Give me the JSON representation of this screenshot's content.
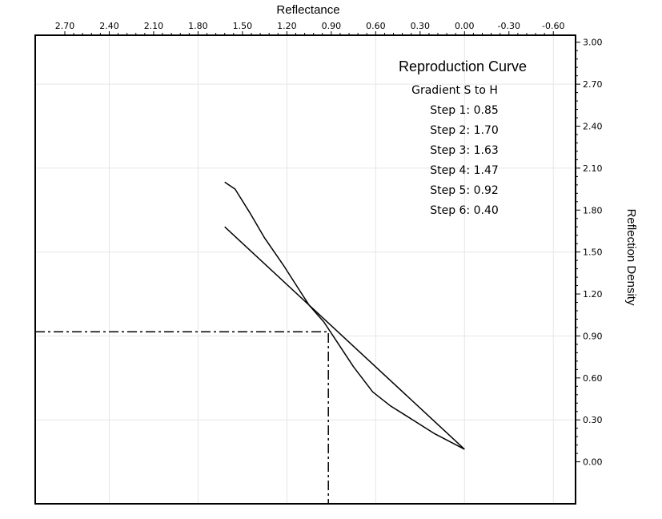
{
  "chart_data": {
    "type": "line",
    "x_axis": {
      "label": "Reflectance",
      "position": "top",
      "reversed": true,
      "range": [
        2.9,
        -0.75
      ],
      "ticks": [
        "2.70",
        "2.40",
        "2.10",
        "1.80",
        "1.50",
        "1.20",
        "0.90",
        "0.60",
        "0.30",
        "0.00",
        "-0.30",
        "-0.60"
      ]
    },
    "y_axis": {
      "label": "Reflection Density",
      "position": "right",
      "range": [
        -0.3,
        3.05
      ],
      "ticks": [
        "3.00",
        "2.70",
        "2.40",
        "2.10",
        "1.80",
        "1.50",
        "1.20",
        "0.90",
        "0.60",
        "0.30",
        "0.00"
      ]
    },
    "grid": true,
    "series": [
      {
        "name": "",
        "style": "solid",
        "x": [
          1.62,
          1.55,
          1.45,
          1.35,
          1.22,
          1.05,
          0.95,
          0.85,
          0.75,
          0.62,
          0.5,
          0.35,
          0.2,
          0.0
        ],
        "y": [
          2.0,
          1.95,
          1.78,
          1.6,
          1.4,
          1.12,
          1.0,
          0.84,
          0.68,
          0.5,
          0.4,
          0.3,
          0.2,
          0.09
        ]
      },
      {
        "name": "",
        "style": "solid",
        "x": [
          1.62,
          0.0
        ],
        "y": [
          1.68,
          0.09
        ]
      },
      {
        "name": "",
        "style": "dash-dot",
        "x": [
          2.9,
          0.92,
          0.92
        ],
        "y": [
          0.93,
          0.93,
          -0.3
        ]
      }
    ],
    "annotation": {
      "title": "Reproduction Curve",
      "lines": [
        "Gradient S to H",
        "Step 1: 0.85",
        "Step 2: 1.70",
        "Step 3: 1.63",
        "Step 4: 1.47",
        "Step 5: 0.92",
        "Step 6: 0.40"
      ]
    }
  }
}
